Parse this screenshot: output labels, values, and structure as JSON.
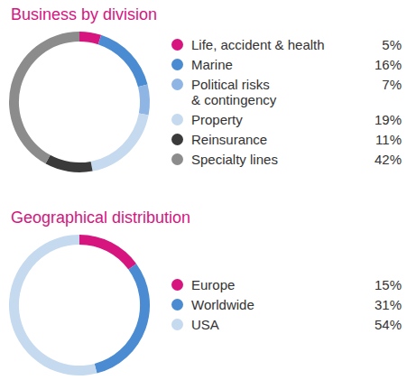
{
  "chart_data": [
    {
      "type": "doughnut",
      "title": "Business by division",
      "categories": [
        "Life, accident & health",
        "Marine",
        "Political risks\n& contingency",
        "Property",
        "Reinsurance",
        "Specialty lines"
      ],
      "values": [
        5,
        16,
        7,
        19,
        11,
        42
      ],
      "value_labels": [
        "5%",
        "16%",
        "7%",
        "19%",
        "11%",
        "42%"
      ],
      "colors": [
        "#d6157f",
        "#4a8bd2",
        "#8fb5e4",
        "#c5d9ef",
        "#3a3a3a",
        "#8c8c8c"
      ],
      "legend": "right"
    },
    {
      "type": "doughnut",
      "title": "Geographical distribution",
      "categories": [
        "Europe",
        "Worldwide",
        "USA"
      ],
      "values": [
        15,
        31,
        54
      ],
      "value_labels": [
        "15%",
        "31%",
        "54%"
      ],
      "colors": [
        "#d6157f",
        "#4a8bd2",
        "#c5d9ef"
      ],
      "legend": "right"
    }
  ]
}
